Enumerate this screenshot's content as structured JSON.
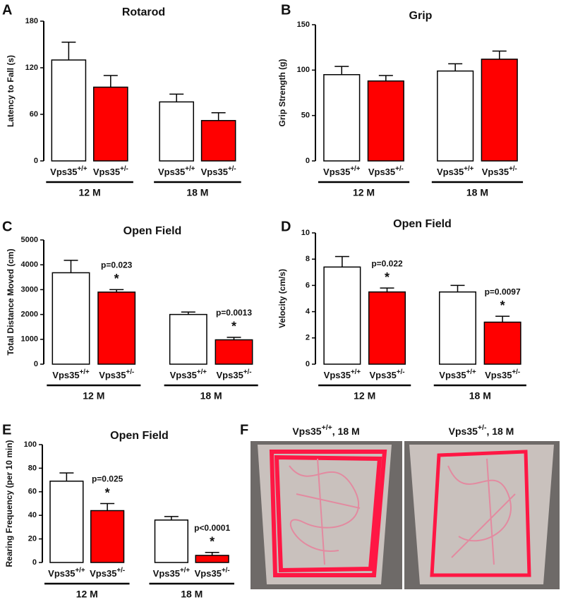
{
  "chart_data": [
    {
      "type": "bar",
      "letter": "A",
      "title": "Rotarod",
      "ylabel": "Latency to Fall (s)",
      "categories": [
        "Vps35+/+",
        "Vps35+/-",
        "Vps35+/+",
        "Vps35+/-"
      ],
      "groups": [
        "12 M",
        "18 M"
      ],
      "values": [
        130,
        95,
        76,
        52
      ],
      "errors": [
        23,
        15,
        10,
        10
      ],
      "colors": [
        "#ffffff",
        "#ff0000",
        "#ffffff",
        "#ff0000"
      ],
      "label_colors": [
        "#111111",
        "#b01010",
        "#111111",
        "#b01010"
      ],
      "ylim": [
        0,
        180
      ],
      "yticks": [
        0,
        60,
        120,
        180
      ]
    },
    {
      "type": "bar",
      "letter": "B",
      "title": "Grip",
      "ylabel": "Grip Strength (g)",
      "categories": [
        "Vps35+/+",
        "Vps35+/-",
        "Vps35+/+",
        "Vps35+/-"
      ],
      "groups": [
        "12 M",
        "18 M"
      ],
      "values": [
        95,
        88,
        99,
        112
      ],
      "errors": [
        9,
        6,
        8,
        9
      ],
      "colors": [
        "#ffffff",
        "#ff0000",
        "#ffffff",
        "#ff0000"
      ],
      "label_colors": [
        "#111111",
        "#b01010",
        "#111111",
        "#b01010"
      ],
      "ylim": [
        0,
        150
      ],
      "yticks": [
        0,
        50,
        100,
        150
      ]
    },
    {
      "type": "bar",
      "letter": "C",
      "title": "Open Field",
      "ylabel": "Total Distance Moved (cm)",
      "categories": [
        "Vps35+/+",
        "Vps35+/-",
        "Vps35+/+",
        "Vps35+/-"
      ],
      "groups": [
        "12 M",
        "18 M"
      ],
      "values": [
        3680,
        2900,
        2000,
        980
      ],
      "errors": [
        500,
        100,
        100,
        100
      ],
      "colors": [
        "#ffffff",
        "#ff0000",
        "#ffffff",
        "#ff0000"
      ],
      "label_colors": [
        "#111111",
        "#b01010",
        "#111111",
        "#b01010"
      ],
      "p_values": [
        null,
        "p=0.023",
        null,
        "p=0.0013"
      ],
      "significance": [
        null,
        "*",
        null,
        "*"
      ],
      "ylim": [
        0,
        5000
      ],
      "yticks": [
        0,
        1000,
        2000,
        3000,
        4000,
        5000
      ]
    },
    {
      "type": "bar",
      "letter": "D",
      "title": "Open Field",
      "ylabel": "Velocity (cm/s)",
      "categories": [
        "Vps35+/+",
        "Vps35+/-",
        "Vps35+/+",
        "Vps35+/-"
      ],
      "groups": [
        "12 M",
        "18 M"
      ],
      "values": [
        7.4,
        5.5,
        5.5,
        3.2
      ],
      "errors": [
        0.8,
        0.3,
        0.5,
        0.45
      ],
      "colors": [
        "#ffffff",
        "#ff0000",
        "#ffffff",
        "#ff0000"
      ],
      "label_colors": [
        "#111111",
        "#b01010",
        "#111111",
        "#b01010"
      ],
      "p_values": [
        null,
        "p=0.022",
        null,
        "p=0.0097"
      ],
      "significance": [
        null,
        "*",
        null,
        "*"
      ],
      "ylim": [
        0,
        10
      ],
      "yticks": [
        0,
        2,
        4,
        6,
        8,
        10
      ]
    },
    {
      "type": "bar",
      "letter": "E",
      "title": "Open Field",
      "ylabel": "Rearing Frequency (per 10 min)",
      "categories": [
        "Vps35+/+",
        "Vps35+/-",
        "Vps35+/+",
        "Vps35+/-"
      ],
      "groups": [
        "12 M",
        "18 M"
      ],
      "values": [
        69,
        44,
        36,
        6
      ],
      "errors": [
        7,
        6,
        3,
        2.5
      ],
      "colors": [
        "#ffffff",
        "#ff0000",
        "#ffffff",
        "#ff0000"
      ],
      "label_colors": [
        "#111111",
        "#b01010",
        "#111111",
        "#b01010"
      ],
      "p_values": [
        null,
        "p=0.025",
        null,
        "p<0.0001"
      ],
      "significance": [
        null,
        "*",
        null,
        "*"
      ],
      "ylim": [
        0,
        100
      ],
      "yticks": [
        0,
        20,
        40,
        60,
        80,
        100
      ]
    }
  ],
  "photo_panel": {
    "letter": "F",
    "captions": [
      "Vps35+/+, 18 M",
      "Vps35+/-, 18 M"
    ],
    "caption_colors": [
      "#111111",
      "#e0141e"
    ]
  }
}
